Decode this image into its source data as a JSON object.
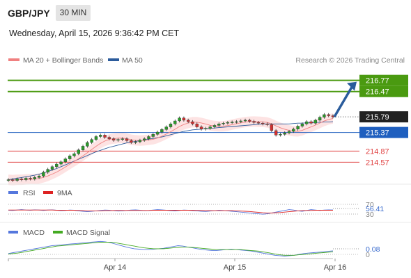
{
  "header": {
    "symbol": "GBP/JPY",
    "timeframe": "30 MIN",
    "datetime": "Wednesday, April 15, 2026 9:36:42 PM CET"
  },
  "legend": {
    "ma20_label": "MA 20 + Bollinger Bands",
    "ma20_color": "#f08080",
    "ma50_label": "MA 50",
    "ma50_color": "#2c5c9c",
    "copyright": "Research © 2026 Trading Central"
  },
  "colors": {
    "green_level": "#4a9a10",
    "blue_level": "#1f5fbf",
    "red_level": "#e04040",
    "candle_up": "#2a9a2a",
    "candle_down": "#d03030",
    "arrow": "#2a5c9c",
    "rsi": "#5577dd",
    "rsi_ma": "#dd2222",
    "macd": "#5577dd",
    "macd_signal": "#44aa22",
    "band_fill": "#fde0e0"
  },
  "chart_data": [
    {
      "type": "candlestick",
      "title": "GBP/JPY 30 MIN",
      "ylim": [
        214.26,
        217.1
      ],
      "levels": [
        {
          "value": 216.77,
          "label": "216.77",
          "kind": "resistance",
          "color": "#4a9a10"
        },
        {
          "value": 216.47,
          "label": "216.47",
          "kind": "resistance",
          "color": "#4a9a10"
        },
        {
          "value": 215.79,
          "label": "215.79",
          "kind": "last",
          "color": "#222222"
        },
        {
          "value": 215.37,
          "label": "215.37",
          "kind": "pivot",
          "color": "#1f5fbf"
        },
        {
          "value": 214.87,
          "label": "214.87",
          "kind": "support",
          "color": "#e04040"
        },
        {
          "value": 214.57,
          "label": "214.57",
          "kind": "support",
          "color": "#e04040"
        }
      ],
      "arrow": {
        "from": 215.79,
        "to": 216.77,
        "direction": "up"
      },
      "x_ticks": [
        "Apr 14",
        "Apr 15",
        "Apr 16"
      ],
      "close_series": [
        214.1,
        214.08,
        214.12,
        214.1,
        214.14,
        214.12,
        214.16,
        214.2,
        214.3,
        214.38,
        214.45,
        214.52,
        214.58,
        214.66,
        214.74,
        214.8,
        214.9,
        215.0,
        215.1,
        215.18,
        215.26,
        215.3,
        215.24,
        215.2,
        215.16,
        215.18,
        215.2,
        215.15,
        215.1,
        215.12,
        215.16,
        215.2,
        215.26,
        215.32,
        215.38,
        215.45,
        215.52,
        215.6,
        215.68,
        215.76,
        215.7,
        215.66,
        215.6,
        215.52,
        215.46,
        215.48,
        215.52,
        215.56,
        215.6,
        215.62,
        215.64,
        215.65,
        215.66,
        215.68,
        215.7,
        215.67,
        215.64,
        215.62,
        215.6,
        215.58,
        215.42,
        215.3,
        215.32,
        215.36,
        215.4,
        215.46,
        215.54,
        215.6,
        215.66,
        215.62,
        215.7,
        215.78,
        215.85,
        215.82,
        215.79
      ],
      "ma50_series": [
        214.1,
        214.12,
        214.14,
        214.16,
        214.18,
        214.2,
        214.22,
        214.25,
        214.28,
        214.32,
        214.36,
        214.4,
        214.45,
        214.5,
        214.55,
        214.6,
        214.65,
        214.7,
        214.75,
        214.8,
        214.85,
        214.89,
        214.93,
        214.97,
        215.0,
        215.03,
        215.06,
        215.09,
        215.11,
        215.13,
        215.15,
        215.17,
        215.19,
        215.21,
        215.23,
        215.25,
        215.28,
        215.31,
        215.34,
        215.37,
        215.4,
        215.42,
        215.44,
        215.45,
        215.46,
        215.47,
        215.48,
        215.49,
        215.5,
        215.51,
        215.52,
        215.53,
        215.54,
        215.55,
        215.56,
        215.57,
        215.58,
        215.59,
        215.6,
        215.6,
        215.6,
        215.6,
        215.6,
        215.6,
        215.6,
        215.61,
        215.62,
        215.62,
        215.63,
        215.63,
        215.64,
        215.64,
        215.65,
        215.65,
        215.66
      ],
      "series": [
        {
          "name": "MA 20 + Bollinger Bands"
        },
        {
          "name": "MA 50"
        }
      ]
    },
    {
      "type": "line",
      "title": "RSI",
      "ylim": [
        0,
        100
      ],
      "y_ticks": [
        "70",
        "30"
      ],
      "last_value": "56.41",
      "series": [
        {
          "name": "RSI",
          "values": [
            55,
            54,
            56,
            58,
            56,
            55,
            57,
            56,
            54,
            56,
            57,
            55,
            53,
            54,
            56,
            55,
            52,
            50,
            48,
            50,
            52,
            54,
            56,
            55,
            53,
            51,
            52,
            54,
            56,
            57,
            55,
            53,
            54,
            56,
            58,
            57,
            55,
            53,
            52,
            54,
            56,
            55,
            53,
            52,
            50,
            49,
            51,
            53,
            55,
            54,
            52,
            50,
            48,
            46,
            44,
            42,
            40,
            38,
            36,
            38,
            42,
            46,
            50,
            54,
            58,
            56,
            52,
            50,
            54,
            58,
            56,
            54,
            56,
            57,
            56.41
          ]
        },
        {
          "name": "9MA",
          "values": [
            56,
            56,
            56,
            56,
            56,
            56,
            56,
            56,
            56,
            56,
            56,
            55,
            55,
            55,
            55,
            55,
            54,
            53,
            52,
            52,
            52,
            52,
            53,
            53,
            54,
            54,
            54,
            54,
            54,
            54,
            54,
            54,
            54,
            55,
            55,
            55,
            55,
            55,
            55,
            55,
            55,
            55,
            55,
            54,
            54,
            53,
            53,
            53,
            53,
            53,
            53,
            53,
            52,
            51,
            50,
            49,
            47,
            45,
            43,
            42,
            42,
            43,
            44,
            46,
            48,
            50,
            52,
            53,
            54,
            54,
            55,
            55,
            55,
            55,
            55
          ]
        }
      ]
    },
    {
      "type": "line",
      "title": "MACD",
      "y_ticks": [
        "0"
      ],
      "last_value": "0.08",
      "series": [
        {
          "name": "MACD",
          "values": [
            0.02,
            0.04,
            0.06,
            0.08,
            0.1,
            0.12,
            0.14,
            0.16,
            0.18,
            0.2,
            0.21,
            0.22,
            0.23,
            0.24,
            0.25,
            0.26,
            0.27,
            0.28,
            0.29,
            0.3,
            0.29,
            0.27,
            0.24,
            0.21,
            0.18,
            0.15,
            0.13,
            0.12,
            0.11,
            0.11,
            0.12,
            0.13,
            0.14,
            0.16,
            0.18,
            0.2,
            0.19,
            0.17,
            0.15,
            0.13,
            0.11,
            0.1,
            0.09,
            0.09,
            0.1,
            0.11,
            0.12,
            0.11,
            0.1,
            0.09,
            0.08,
            0.06,
            0.04,
            0.02,
            0.0,
            -0.02,
            -0.03,
            -0.04,
            -0.03,
            -0.02,
            0.0,
            0.02,
            0.03,
            0.04,
            0.05,
            0.06,
            0.07,
            0.08
          ]
        },
        {
          "name": "MACD Signal",
          "values": [
            0.01,
            0.02,
            0.03,
            0.05,
            0.07,
            0.09,
            0.11,
            0.13,
            0.15,
            0.17,
            0.19,
            0.2,
            0.21,
            0.22,
            0.23,
            0.24,
            0.25,
            0.26,
            0.27,
            0.28,
            0.28,
            0.28,
            0.27,
            0.25,
            0.23,
            0.21,
            0.19,
            0.17,
            0.15,
            0.14,
            0.13,
            0.13,
            0.13,
            0.14,
            0.15,
            0.16,
            0.17,
            0.17,
            0.16,
            0.15,
            0.14,
            0.13,
            0.12,
            0.11,
            0.11,
            0.11,
            0.11,
            0.11,
            0.11,
            0.1,
            0.09,
            0.08,
            0.07,
            0.05,
            0.03,
            0.01,
            -0.01,
            -0.02,
            -0.02,
            -0.02,
            -0.01,
            0.0,
            0.01,
            0.02,
            0.03,
            0.04,
            0.05,
            0.06
          ]
        }
      ]
    }
  ],
  "rsi_legend": {
    "rsi_label": "RSI",
    "ma_label": "9MA"
  },
  "macd_legend": {
    "macd_label": "MACD",
    "signal_label": "MACD Signal"
  }
}
